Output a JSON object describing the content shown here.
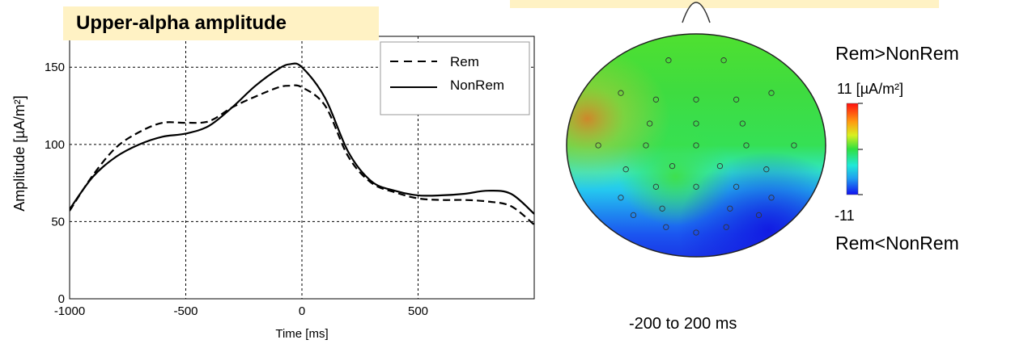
{
  "title": "Upper-alpha amplitude",
  "chart_data": {
    "type": "line",
    "xlabel": "Time [ms]",
    "ylabel": "Amplitude [µA/m²]",
    "xlim": [
      -1000,
      1000
    ],
    "ylim": [
      0,
      170
    ],
    "xticks": [
      -1000,
      -500,
      0,
      500
    ],
    "yticks": [
      0,
      50,
      100,
      150
    ],
    "grid": true,
    "legend_position": "top-right",
    "series": [
      {
        "name": "Rem",
        "style": "dashed",
        "color": "#000000",
        "x": [
          -1000,
          -900,
          -800,
          -700,
          -600,
          -500,
          -400,
          -300,
          -200,
          -100,
          -50,
          0,
          100,
          200,
          300,
          400,
          500,
          600,
          700,
          800,
          900,
          1000
        ],
        "y": [
          57,
          80,
          98,
          108,
          114,
          114,
          115,
          124,
          131,
          137,
          138,
          137,
          125,
          92,
          75,
          69,
          65,
          64,
          64,
          63,
          60,
          48
        ]
      },
      {
        "name": "NonRem",
        "style": "solid",
        "color": "#000000",
        "x": [
          -1000,
          -900,
          -800,
          -700,
          -600,
          -500,
          -400,
          -300,
          -200,
          -100,
          -50,
          0,
          100,
          200,
          300,
          400,
          500,
          600,
          700,
          800,
          900,
          1000
        ],
        "y": [
          58,
          79,
          92,
          100,
          105,
          107,
          112,
          124,
          138,
          149,
          152,
          150,
          130,
          95,
          76,
          70,
          67,
          67,
          68,
          70,
          68,
          55
        ]
      }
    ]
  },
  "topomap": {
    "time_window": "-200 to 200 ms",
    "colorbar_max": "11 [µA/m²]",
    "colorbar_min": "-11",
    "label_top": "Rem>NonRem",
    "label_bottom": "Rem<NonRem",
    "electrodes": [
      [
        -0.22,
        0.78
      ],
      [
        0.22,
        0.78
      ],
      [
        -0.6,
        0.48
      ],
      [
        -0.32,
        0.42
      ],
      [
        0.0,
        0.42
      ],
      [
        0.32,
        0.42
      ],
      [
        0.6,
        0.48
      ],
      [
        -0.37,
        0.2
      ],
      [
        0.0,
        0.2
      ],
      [
        0.37,
        0.2
      ],
      [
        -0.78,
        0.0
      ],
      [
        -0.4,
        0.0
      ],
      [
        0.0,
        0.0
      ],
      [
        0.4,
        0.0
      ],
      [
        0.78,
        0.0
      ],
      [
        -0.56,
        -0.22
      ],
      [
        -0.19,
        -0.19
      ],
      [
        0.19,
        -0.19
      ],
      [
        0.56,
        -0.22
      ],
      [
        -0.32,
        -0.38
      ],
      [
        0.0,
        -0.38
      ],
      [
        0.32,
        -0.38
      ],
      [
        -0.6,
        -0.48
      ],
      [
        0.6,
        -0.48
      ],
      [
        -0.27,
        -0.58
      ],
      [
        0.27,
        -0.58
      ],
      [
        -0.5,
        -0.64
      ],
      [
        0.5,
        -0.64
      ],
      [
        -0.24,
        -0.75
      ],
      [
        0.24,
        -0.75
      ],
      [
        0.0,
        -0.8
      ]
    ]
  }
}
